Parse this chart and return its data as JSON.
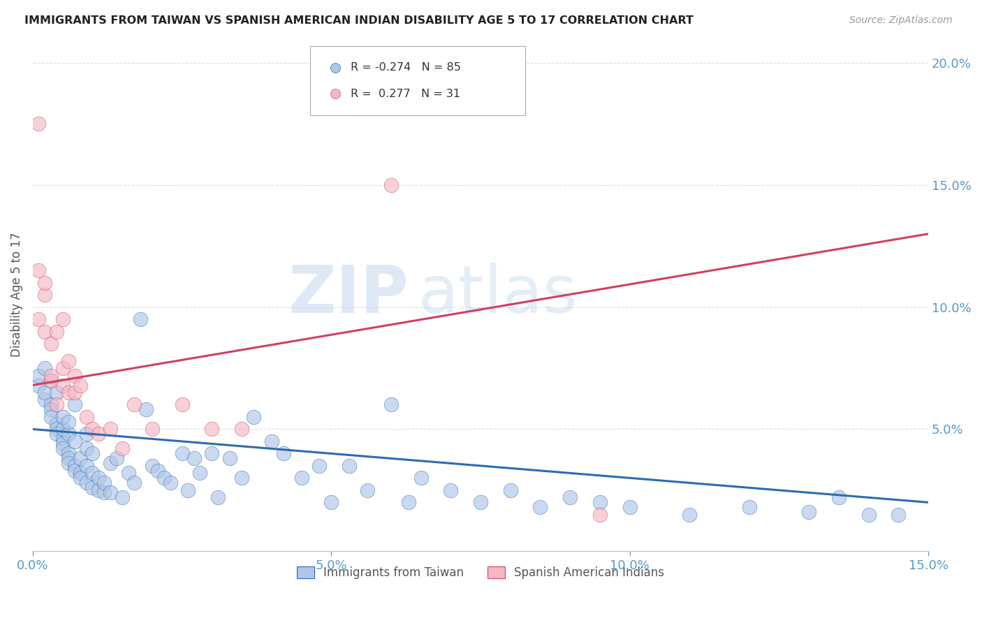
{
  "title": "IMMIGRANTS FROM TAIWAN VS SPANISH AMERICAN INDIAN DISABILITY AGE 5 TO 17 CORRELATION CHART",
  "source": "Source: ZipAtlas.com",
  "ylabel": "Disability Age 5 to 17",
  "xmin": 0.0,
  "xmax": 0.15,
  "ymin": 0.0,
  "ymax": 0.21,
  "yticks": [
    0.0,
    0.05,
    0.1,
    0.15,
    0.2
  ],
  "ytick_labels": [
    "",
    "5.0%",
    "10.0%",
    "15.0%",
    "20.0%"
  ],
  "xticks": [
    0.0,
    0.05,
    0.1,
    0.15
  ],
  "xtick_labels": [
    "0.0%",
    "5.0%",
    "10.0%",
    "15.0%"
  ],
  "taiwan_R": -0.274,
  "taiwan_N": 85,
  "spanish_R": 0.277,
  "spanish_N": 31,
  "taiwan_color": "#aec6e8",
  "taiwan_line_color": "#2b6cb0",
  "spanish_color": "#f4b8c4",
  "spanish_line_color": "#d04060",
  "watermark_zip": "ZIP",
  "watermark_atlas": "atlas",
  "background_color": "#ffffff",
  "grid_color": "#dddddd",
  "taiwan_x": [
    0.001,
    0.001,
    0.002,
    0.002,
    0.002,
    0.003,
    0.003,
    0.003,
    0.003,
    0.004,
    0.004,
    0.004,
    0.004,
    0.005,
    0.005,
    0.005,
    0.005,
    0.005,
    0.006,
    0.006,
    0.006,
    0.006,
    0.006,
    0.007,
    0.007,
    0.007,
    0.007,
    0.008,
    0.008,
    0.008,
    0.009,
    0.009,
    0.009,
    0.009,
    0.01,
    0.01,
    0.01,
    0.011,
    0.011,
    0.012,
    0.012,
    0.013,
    0.013,
    0.014,
    0.015,
    0.016,
    0.017,
    0.018,
    0.019,
    0.02,
    0.021,
    0.022,
    0.023,
    0.025,
    0.026,
    0.027,
    0.028,
    0.03,
    0.031,
    0.033,
    0.035,
    0.037,
    0.04,
    0.042,
    0.045,
    0.048,
    0.05,
    0.053,
    0.056,
    0.06,
    0.063,
    0.065,
    0.07,
    0.075,
    0.08,
    0.085,
    0.09,
    0.095,
    0.1,
    0.11,
    0.12,
    0.13,
    0.135,
    0.14,
    0.145
  ],
  "taiwan_y": [
    0.068,
    0.072,
    0.062,
    0.065,
    0.075,
    0.06,
    0.058,
    0.055,
    0.07,
    0.052,
    0.05,
    0.048,
    0.065,
    0.046,
    0.044,
    0.042,
    0.05,
    0.055,
    0.04,
    0.038,
    0.036,
    0.048,
    0.053,
    0.035,
    0.033,
    0.06,
    0.045,
    0.032,
    0.03,
    0.038,
    0.028,
    0.035,
    0.042,
    0.048,
    0.026,
    0.032,
    0.04,
    0.025,
    0.03,
    0.024,
    0.028,
    0.024,
    0.036,
    0.038,
    0.022,
    0.032,
    0.028,
    0.095,
    0.058,
    0.035,
    0.033,
    0.03,
    0.028,
    0.04,
    0.025,
    0.038,
    0.032,
    0.04,
    0.022,
    0.038,
    0.03,
    0.055,
    0.045,
    0.04,
    0.03,
    0.035,
    0.02,
    0.035,
    0.025,
    0.06,
    0.02,
    0.03,
    0.025,
    0.02,
    0.025,
    0.018,
    0.022,
    0.02,
    0.018,
    0.015,
    0.018,
    0.016,
    0.022,
    0.015,
    0.015
  ],
  "spanish_x": [
    0.001,
    0.001,
    0.001,
    0.002,
    0.002,
    0.002,
    0.003,
    0.003,
    0.003,
    0.004,
    0.004,
    0.005,
    0.005,
    0.005,
    0.006,
    0.006,
    0.007,
    0.007,
    0.008,
    0.009,
    0.01,
    0.011,
    0.013,
    0.015,
    0.017,
    0.02,
    0.025,
    0.03,
    0.035,
    0.06,
    0.095
  ],
  "spanish_y": [
    0.175,
    0.115,
    0.095,
    0.105,
    0.09,
    0.11,
    0.085,
    0.07,
    0.072,
    0.09,
    0.06,
    0.075,
    0.068,
    0.095,
    0.065,
    0.078,
    0.072,
    0.065,
    0.068,
    0.055,
    0.05,
    0.048,
    0.05,
    0.042,
    0.06,
    0.05,
    0.06,
    0.05,
    0.05,
    0.15,
    0.015
  ],
  "taiwan_line_x0": 0.0,
  "taiwan_line_x1": 0.15,
  "taiwan_line_y0": 0.05,
  "taiwan_line_y1": 0.02,
  "spanish_line_x0": 0.0,
  "spanish_line_x1": 0.15,
  "spanish_line_y0": 0.068,
  "spanish_line_y1": 0.13
}
